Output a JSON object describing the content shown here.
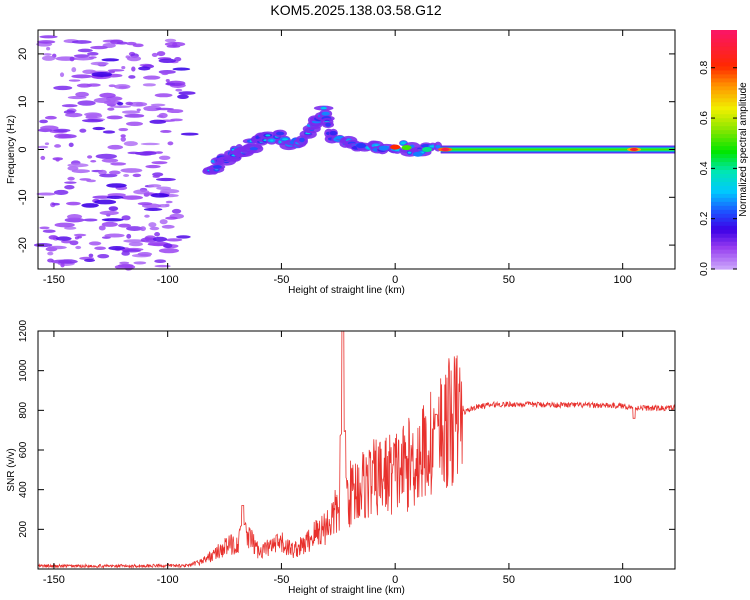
{
  "title": "KOM5.2025.138.03.58.G12",
  "chart_data": [
    {
      "type": "heatmap",
      "xlabel": "Height of straight line (km)",
      "ylabel": "Frequency (Hz)",
      "xlim": [
        -157,
        123
      ],
      "ylim": [
        -25,
        25
      ],
      "xticks": [
        -150,
        -100,
        -50,
        0,
        50,
        100
      ],
      "yticks": [
        -20,
        -10,
        0,
        10,
        20
      ],
      "colorbar": {
        "label": "Normalized spectral amplitude",
        "range": [
          0,
          0.95
        ],
        "ticks": [
          0.0,
          0.2,
          0.4,
          0.6,
          0.8
        ]
      },
      "features": [
        {
          "name": "noise-cloud",
          "x_range": [
            -155,
            -95
          ],
          "y_range": [
            -25,
            24
          ],
          "amplitude": 0.07
        },
        {
          "name": "rising-trace",
          "points": [
            [
              -82,
              -5
            ],
            [
              -78,
              -3
            ],
            [
              -72,
              -1
            ],
            [
              -68,
              0
            ],
            [
              -62,
              1
            ],
            [
              -58,
              2
            ],
            [
              -52,
              3
            ],
            [
              -46,
              1
            ],
            [
              -40,
              2
            ],
            [
              -35,
              6
            ],
            [
              -32,
              8
            ],
            [
              -28,
              3
            ],
            [
              -20,
              1
            ],
            [
              -10,
              0.5
            ],
            [
              0,
              0.5
            ],
            [
              10,
              0
            ],
            [
              20,
              0
            ]
          ],
          "amplitude": 0.25
        },
        {
          "name": "stable-line",
          "x_range": [
            20,
            123
          ],
          "frequency": 0,
          "amplitude": 0.5,
          "peaks": [
            [
              22,
              0.9
            ],
            [
              105,
              0.85
            ]
          ]
        }
      ]
    },
    {
      "type": "line",
      "xlabel": "Height of straight line (km)",
      "ylabel": "SNR (v/v)",
      "xlim": [
        -157,
        123
      ],
      "ylim": [
        0,
        1200
      ],
      "xticks": [
        -150,
        -100,
        -50,
        0,
        50,
        100
      ],
      "yticks": [
        200,
        400,
        600,
        800,
        1000,
        1200
      ],
      "color": "#e8312d",
      "series": [
        {
          "x": [
            -157,
            -120,
            -90,
            -85,
            -80,
            -75,
            -70,
            -65,
            -60,
            -55,
            -50,
            -45,
            -40,
            -35,
            -30,
            -25,
            -23,
            -20,
            -15,
            -10,
            -5,
            0,
            5,
            10,
            15,
            20,
            25,
            30,
            35,
            40,
            45,
            50,
            60,
            70,
            80,
            90,
            100,
            105,
            110,
            115,
            123
          ],
          "y": [
            15,
            15,
            18,
            40,
            70,
            110,
            130,
            170,
            90,
            110,
            130,
            95,
            120,
            180,
            220,
            300,
            350,
            380,
            420,
            450,
            470,
            490,
            520,
            560,
            620,
            700,
            750,
            790,
            815,
            825,
            830,
            830,
            830,
            828,
            826,
            825,
            822,
            815,
            812,
            810,
            812
          ],
          "spikes": [
            [
              -67,
              320
            ],
            [
              -23,
              1200
            ],
            [
              18,
              780
            ],
            [
              105,
              760
            ]
          ]
        }
      ]
    }
  ]
}
